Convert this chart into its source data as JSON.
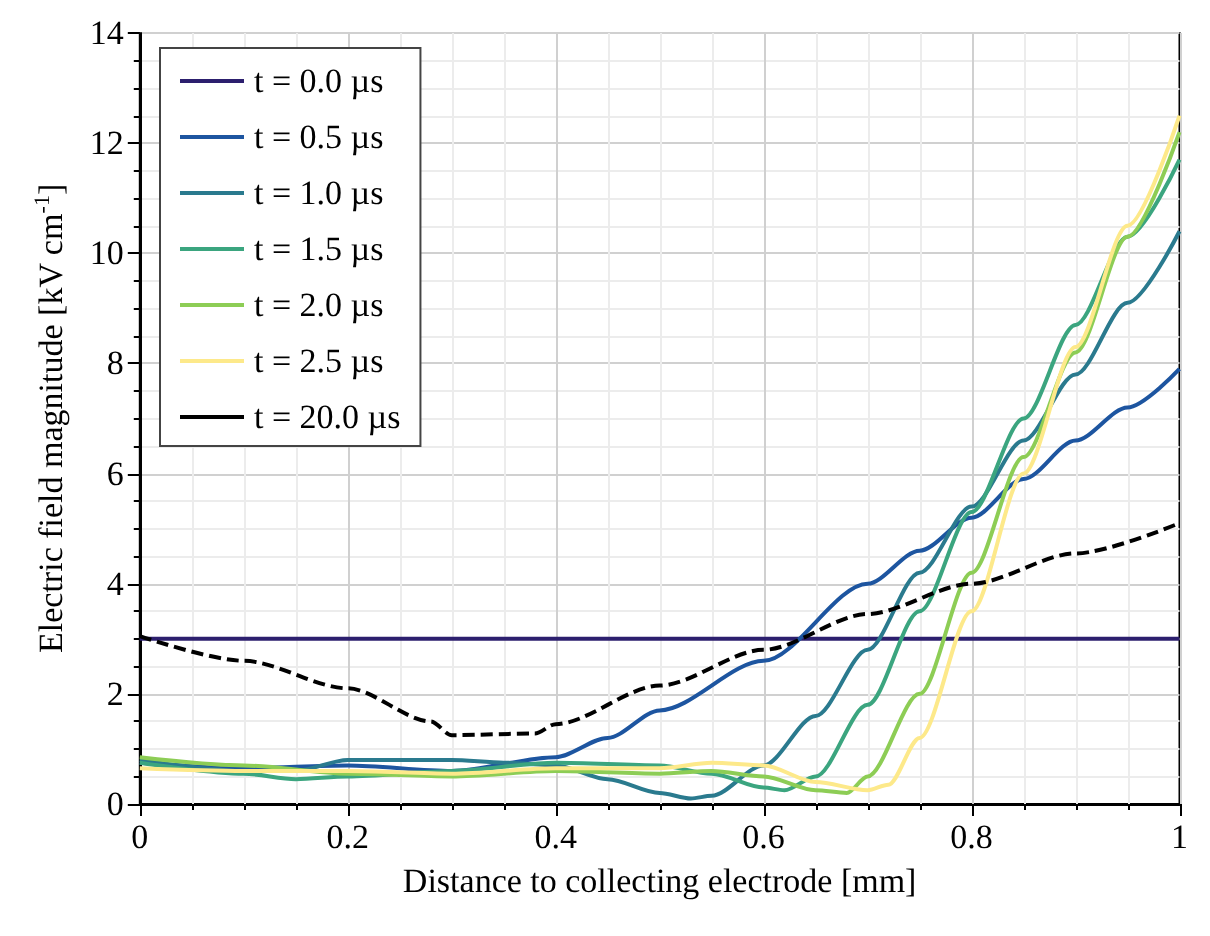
{
  "chart_data": {
    "type": "line",
    "xlabel": "Distance to collecting electrode [mm]",
    "ylabel": "Electric field magnitude [kV cm$^{-1}$]",
    "xlim": [
      0,
      1
    ],
    "ylim": [
      0,
      14
    ],
    "xticks": [
      0,
      0.2,
      0.4,
      0.6,
      0.8,
      1
    ],
    "yticks": [
      0,
      2,
      4,
      6,
      8,
      10,
      12,
      14
    ],
    "grid": true,
    "legend": "top left",
    "marker": "none",
    "series": [
      {
        "name": "t = 0.0 µs",
        "color": "#2c1f6e",
        "line_style": "solid",
        "x": [
          0,
          1
        ],
        "values": [
          3,
          3
        ]
      },
      {
        "name": "t = 0.5 µs",
        "color": "#1d55a0",
        "line_style": "solid",
        "x": [
          0,
          0.1,
          0.2,
          0.3,
          0.4,
          0.45,
          0.5,
          0.6,
          0.7,
          0.75,
          0.8,
          0.85,
          0.9,
          0.95,
          1
        ],
        "values": [
          0.75,
          0.65,
          0.7,
          0.6,
          0.85,
          1.2,
          1.7,
          2.6,
          4.0,
          4.6,
          5.2,
          5.9,
          6.6,
          7.2,
          7.9
        ]
      },
      {
        "name": "t = 1.0 µs",
        "color": "#2a7a8e",
        "line_style": "solid",
        "x": [
          0,
          0.1,
          0.15,
          0.2,
          0.3,
          0.35,
          0.4,
          0.45,
          0.5,
          0.53,
          0.55,
          0.6,
          0.65,
          0.7,
          0.75,
          0.8,
          0.85,
          0.9,
          0.95,
          1
        ],
        "values": [
          0.8,
          0.6,
          0.6,
          0.8,
          0.8,
          0.75,
          0.7,
          0.45,
          0.2,
          0.1,
          0.15,
          0.7,
          1.6,
          2.8,
          4.2,
          5.4,
          6.6,
          7.8,
          9.1,
          10.4
        ]
      },
      {
        "name": "t = 1.5 µs",
        "color": "#3ba57f",
        "line_style": "solid",
        "x": [
          0,
          0.1,
          0.15,
          0.2,
          0.3,
          0.4,
          0.5,
          0.55,
          0.6,
          0.62,
          0.65,
          0.7,
          0.75,
          0.8,
          0.85,
          0.9,
          0.95,
          1
        ],
        "values": [
          0.75,
          0.55,
          0.45,
          0.5,
          0.6,
          0.75,
          0.7,
          0.55,
          0.3,
          0.25,
          0.5,
          1.8,
          3.5,
          5.3,
          7.0,
          8.7,
          10.3,
          11.7
        ]
      },
      {
        "name": "t = 2.0 µs",
        "color": "#8dcd55",
        "line_style": "solid",
        "x": [
          0,
          0.1,
          0.2,
          0.3,
          0.4,
          0.5,
          0.55,
          0.6,
          0.65,
          0.68,
          0.7,
          0.75,
          0.8,
          0.85,
          0.9,
          0.95,
          1
        ],
        "values": [
          0.85,
          0.7,
          0.55,
          0.5,
          0.6,
          0.55,
          0.6,
          0.5,
          0.25,
          0.2,
          0.5,
          2.0,
          4.2,
          6.3,
          8.2,
          10.3,
          12.2
        ]
      },
      {
        "name": "t = 2.5 µs",
        "color": "#fde98a",
        "line_style": "solid",
        "x": [
          0,
          0.1,
          0.2,
          0.3,
          0.4,
          0.5,
          0.55,
          0.6,
          0.65,
          0.7,
          0.72,
          0.75,
          0.8,
          0.85,
          0.9,
          0.95,
          1
        ],
        "values": [
          0.65,
          0.6,
          0.6,
          0.55,
          0.65,
          0.65,
          0.75,
          0.7,
          0.4,
          0.25,
          0.35,
          1.2,
          3.5,
          6.0,
          8.3,
          10.5,
          12.5
        ]
      },
      {
        "name": "t = 20.0 µs",
        "color": "#000000",
        "line_style": "dashed",
        "x": [
          0,
          0.1,
          0.2,
          0.28,
          0.3,
          0.38,
          0.4,
          0.5,
          0.6,
          0.7,
          0.8,
          0.9,
          1
        ],
        "values": [
          3.05,
          2.6,
          2.1,
          1.5,
          1.25,
          1.28,
          1.45,
          2.15,
          2.8,
          3.45,
          4.0,
          4.55,
          5.1
        ]
      }
    ]
  }
}
